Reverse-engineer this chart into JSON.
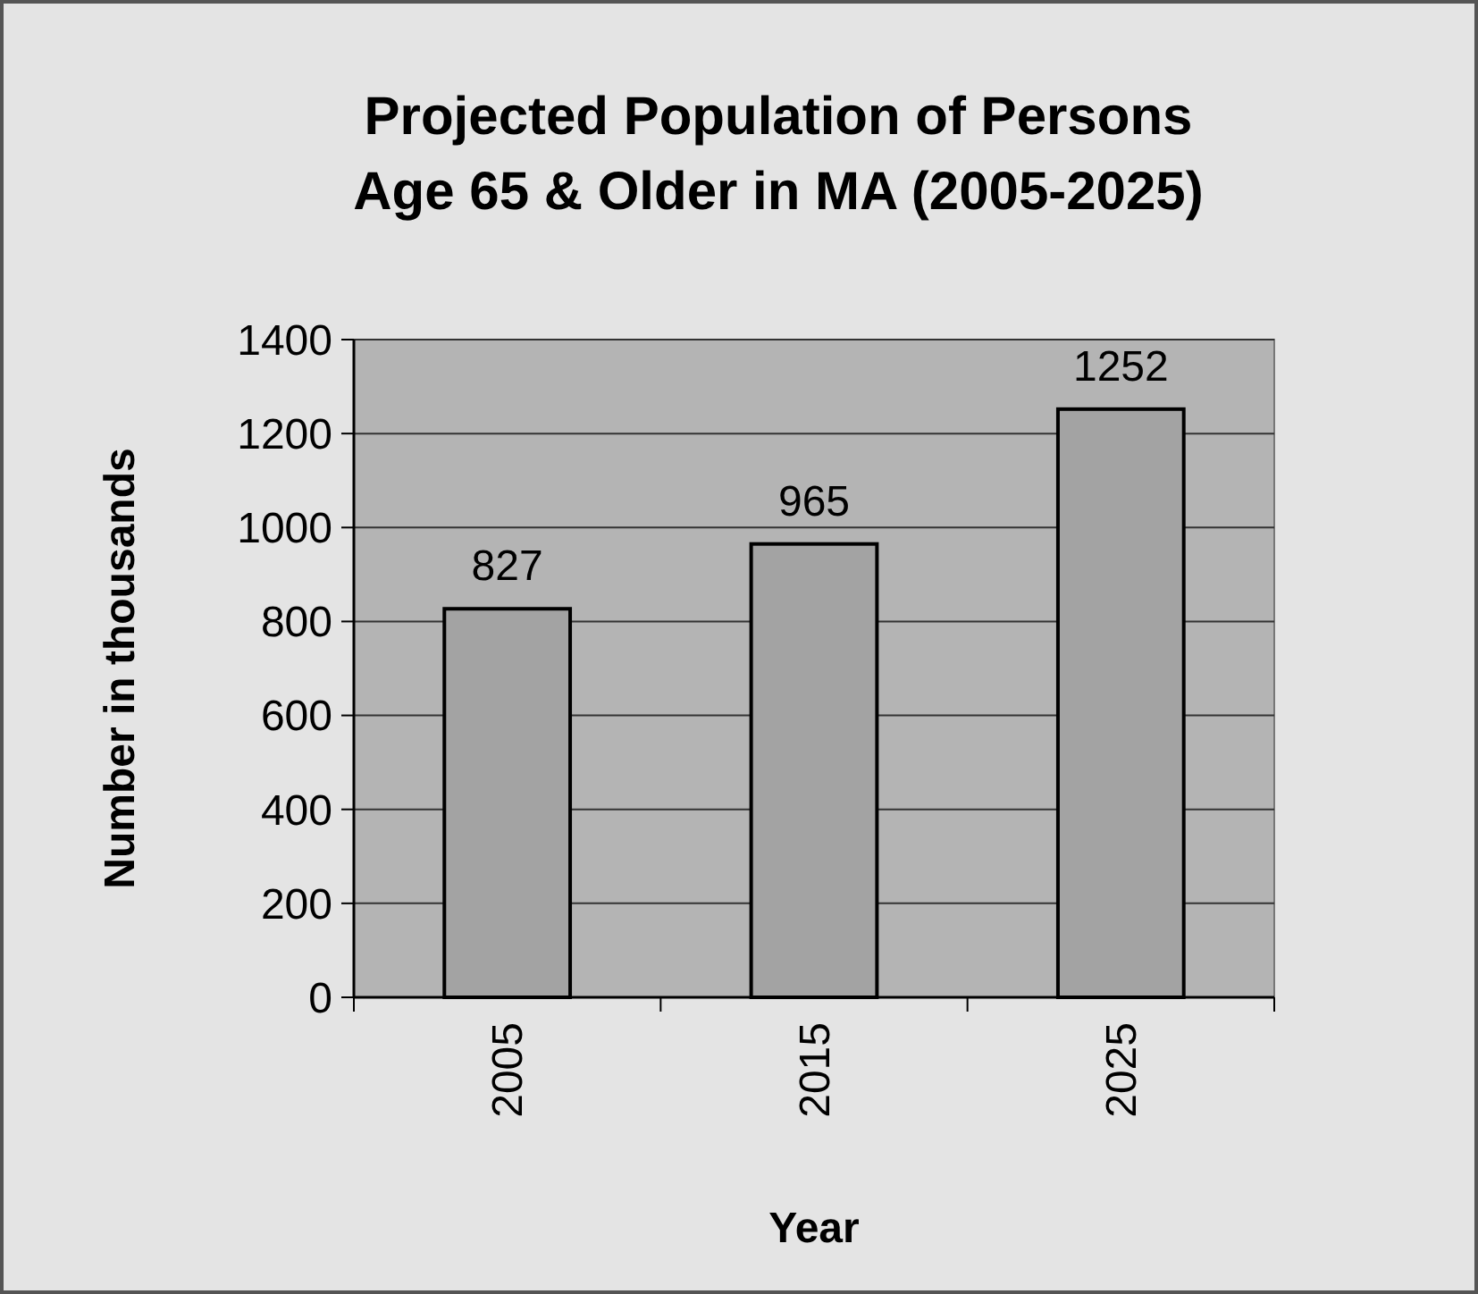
{
  "chart_data": {
    "type": "bar",
    "title": "Projected Population of Persons\nAge 65 & Older in MA (2005-2025)",
    "xlabel": "Year",
    "ylabel": "Number in thousands",
    "categories": [
      "2005",
      "2015",
      "2025"
    ],
    "values": [
      827,
      965,
      1252
    ],
    "color": "#a3a3a3",
    "ylim": [
      0,
      1400
    ],
    "yticks": [
      0,
      200,
      400,
      600,
      800,
      1000,
      1200,
      1400
    ],
    "grid": "y",
    "data_labels": true
  }
}
